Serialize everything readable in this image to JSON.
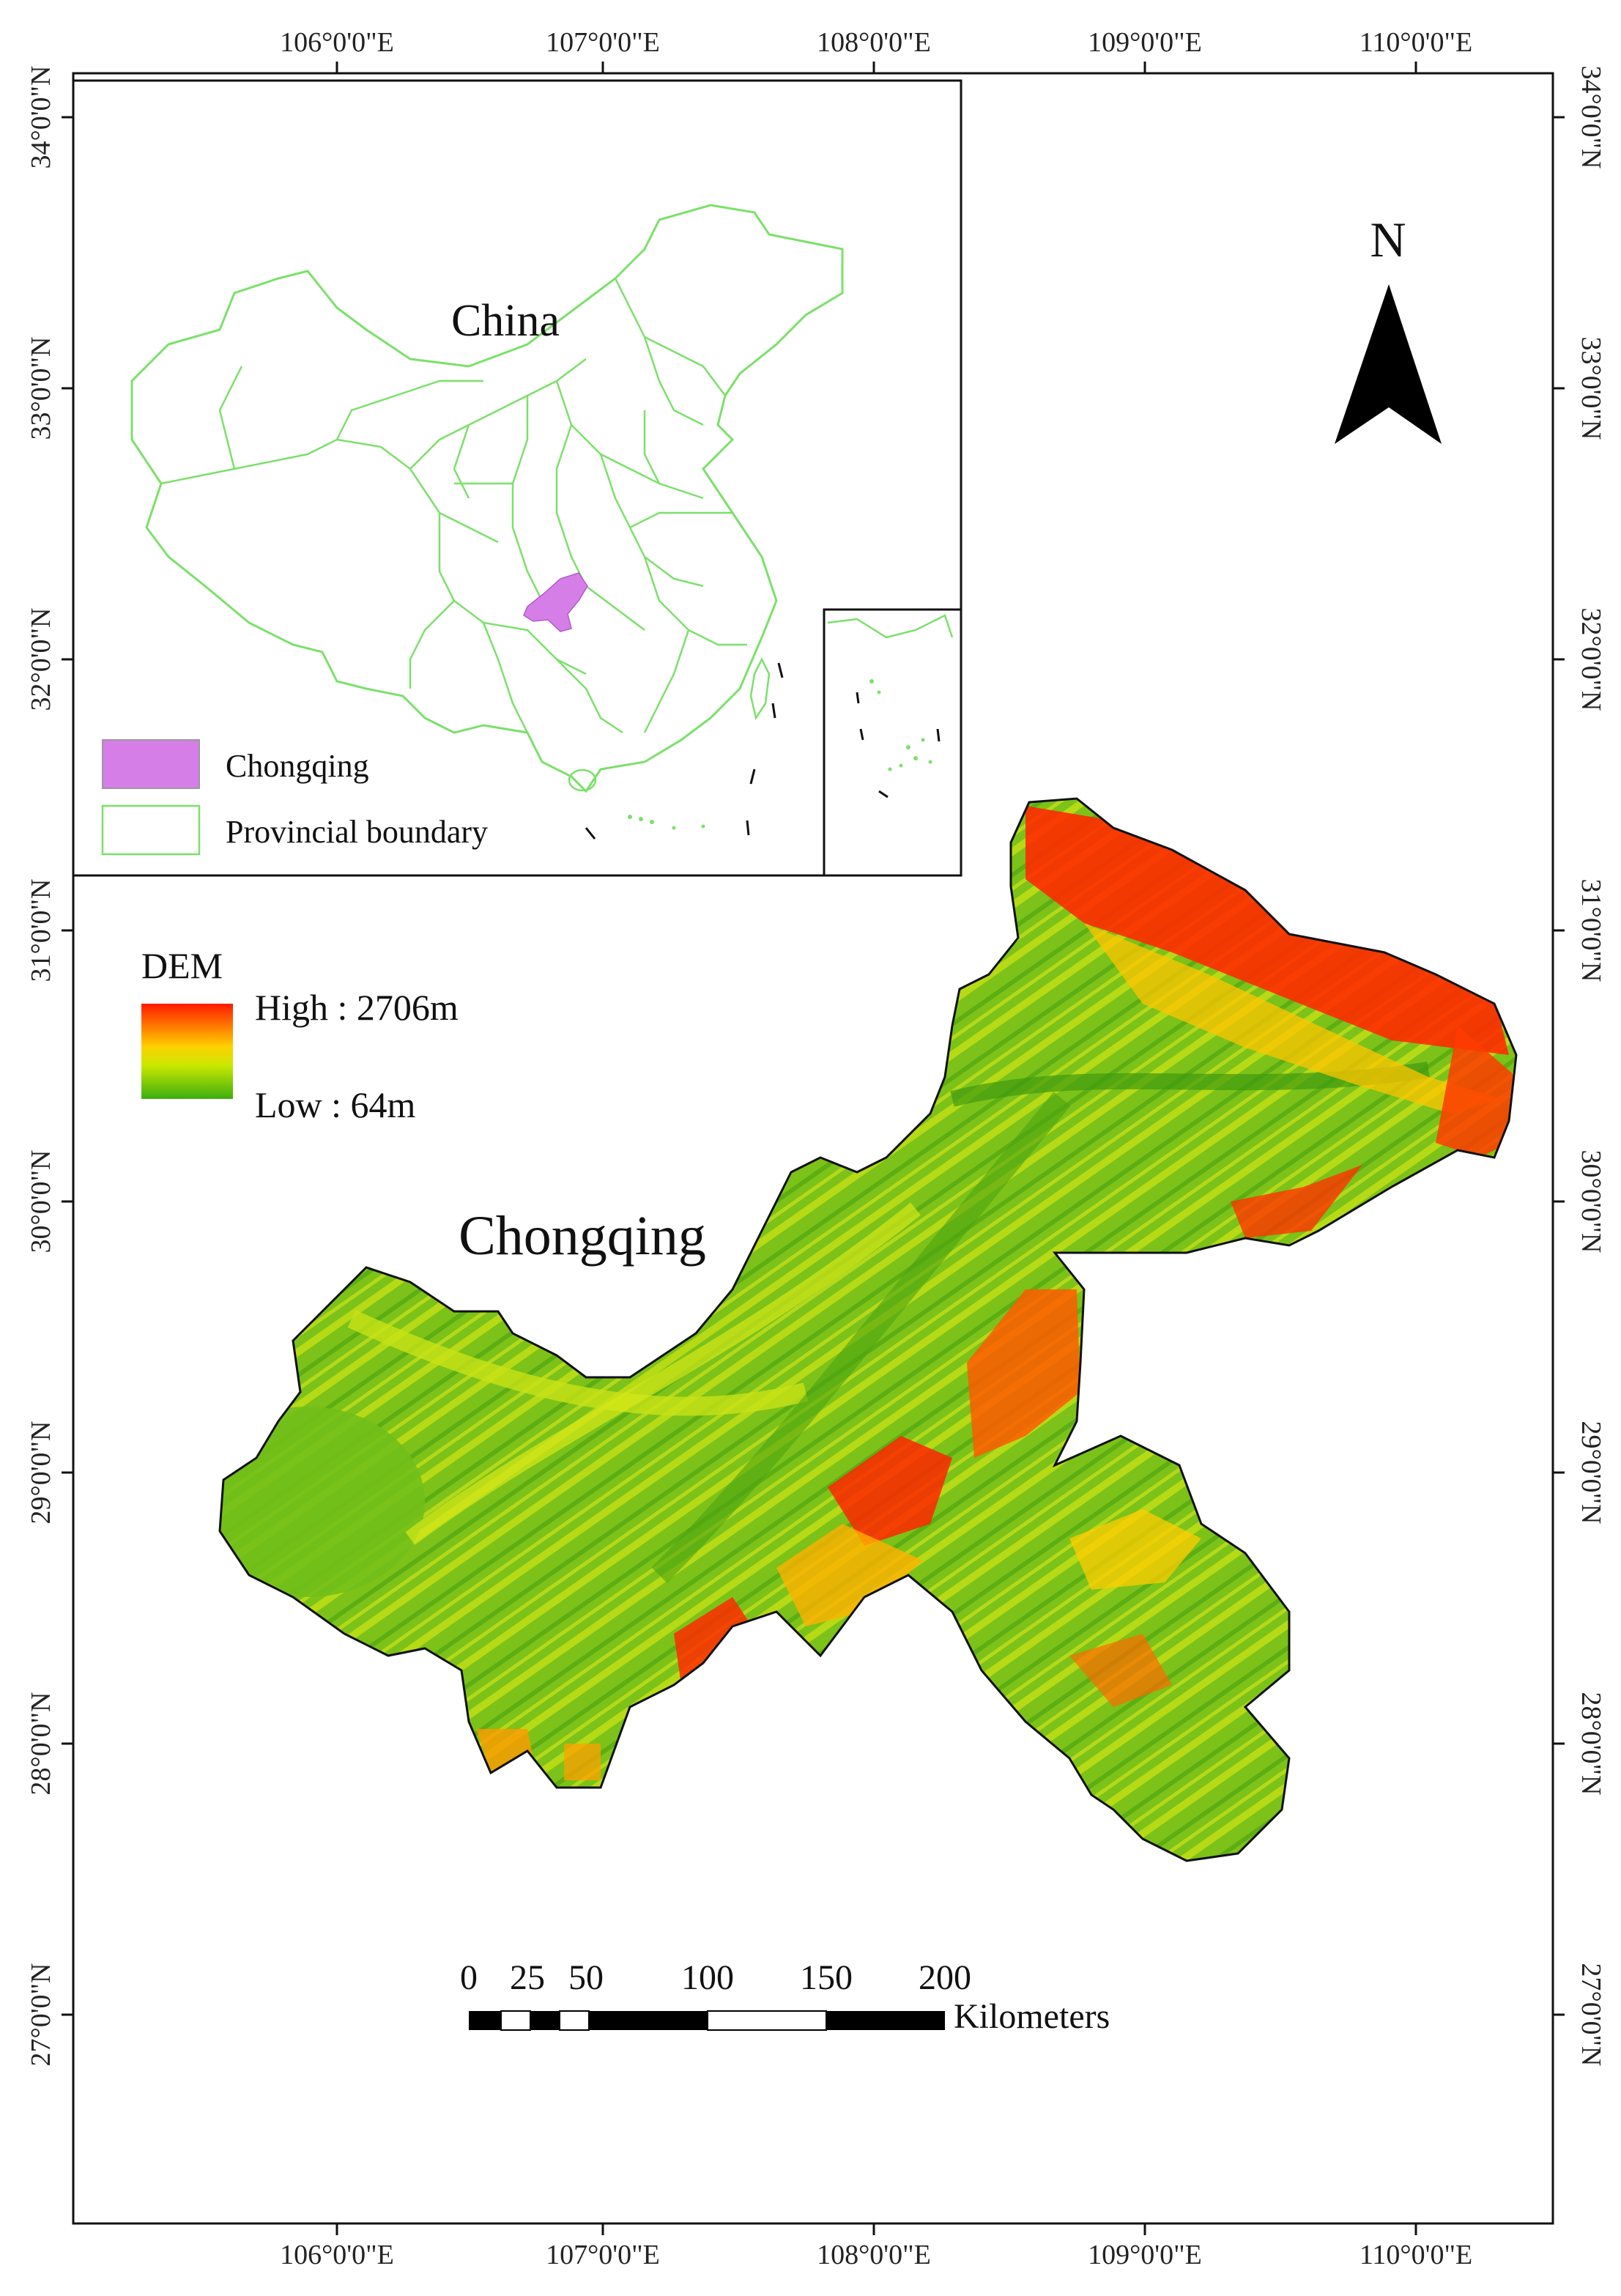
{
  "frame": {
    "top_lon_labels": [
      "106°0'0\"E",
      "107°0'0\"E",
      "108°0'0\"E",
      "109°0'0\"E",
      "110°0'0\"E"
    ],
    "bottom_lon_labels": [
      "106°0'0\"E",
      "107°0'0\"E",
      "108°0'0\"E",
      "109°0'0\"E",
      "110°0'0\"E"
    ],
    "left_lat_labels": [
      "34°0'0\"N",
      "33°0'0\"N",
      "32°0'0\"N",
      "31°0'0\"N",
      "30°0'0\"N",
      "29°0'0\"N",
      "28°0'0\"N",
      "27°0'0\"N"
    ],
    "right_lat_labels": [
      "34°0'0\"N",
      "33°0'0\"N",
      "32°0'0\"N",
      "31°0'0\"N",
      "30°0'0\"N",
      "29°0'0\"N",
      "28°0'0\"N",
      "27°0'0\"N"
    ]
  },
  "inset": {
    "title": "China",
    "legend": [
      {
        "label": "Chongqing",
        "color": "#d67ee8"
      },
      {
        "label": "Provincial boundary",
        "color": "#7be06a"
      }
    ]
  },
  "north_arrow": {
    "label": "N"
  },
  "dem_legend": {
    "title": "DEM",
    "high_label": "High : 2706m",
    "low_label": "Low : 64m",
    "colors": [
      "#ff1a00",
      "#ffd000",
      "#c9e800",
      "#3cae10"
    ]
  },
  "main": {
    "title": "Chongqing"
  },
  "scale_bar": {
    "ticks": [
      "0",
      "25",
      "50",
      "100",
      "150",
      "200"
    ],
    "unit": "Kilometers"
  }
}
